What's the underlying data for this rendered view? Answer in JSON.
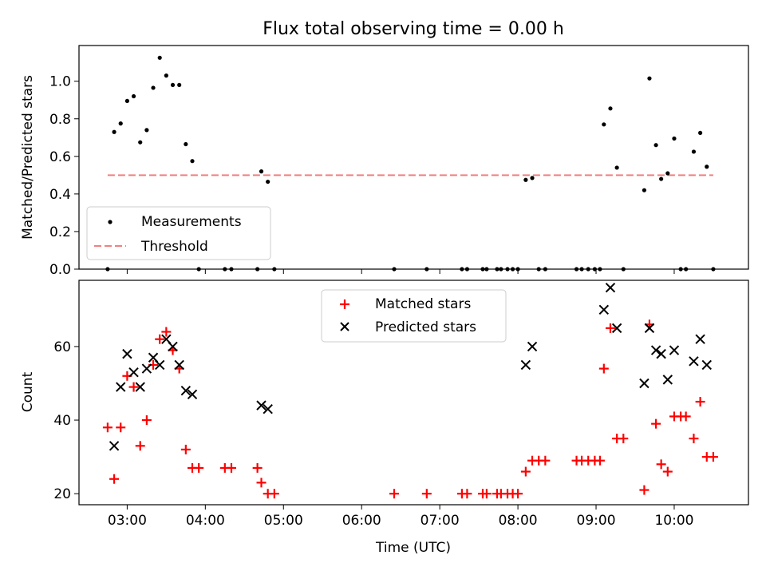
{
  "chart_data": [
    {
      "type": "scatter",
      "title": "Flux total observing time = 0.00 h",
      "xlabel": "",
      "ylabel": "Matched/Predicted stars",
      "xlim": [
        "02:23",
        "10:57"
      ],
      "ylim": [
        0,
        1.19
      ],
      "x_ticks": [
        "03:00",
        "04:00",
        "05:00",
        "06:00",
        "07:00",
        "08:00",
        "09:00",
        "10:00"
      ],
      "x_ticks_labelled": false,
      "y_ticks": [
        0.0,
        0.2,
        0.4,
        0.6,
        0.8,
        1.0
      ],
      "legend_position": "lower-left",
      "legend": {
        "measurements": "Measurements",
        "threshold": "Threshold"
      },
      "threshold": {
        "name": "Threshold",
        "y": 0.5,
        "x_range": [
          "02:45",
          "10:30"
        ],
        "color": "#f08080",
        "style": "dashed"
      },
      "series": [
        {
          "name": "Measurements",
          "color": "#000000",
          "points": [
            [
              "02:45",
              0.0
            ],
            [
              "02:50",
              0.73
            ],
            [
              "02:55",
              0.775
            ],
            [
              "03:00",
              0.895
            ],
            [
              "03:05",
              0.92
            ],
            [
              "03:10",
              0.675
            ],
            [
              "03:15",
              0.74
            ],
            [
              "03:20",
              0.965
            ],
            [
              "03:25",
              1.125
            ],
            [
              "03:30",
              1.03
            ],
            [
              "03:35",
              0.98
            ],
            [
              "03:40",
              0.98
            ],
            [
              "03:45",
              0.665
            ],
            [
              "03:50",
              0.575
            ],
            [
              "03:55",
              0.0
            ],
            [
              "04:15",
              0.0
            ],
            [
              "04:20",
              0.0
            ],
            [
              "04:40",
              0.0
            ],
            [
              "04:43",
              0.52
            ],
            [
              "04:48",
              0.465
            ],
            [
              "04:53",
              0.0
            ],
            [
              "06:25",
              0.0
            ],
            [
              "06:50",
              0.0
            ],
            [
              "07:17",
              0.0
            ],
            [
              "07:21",
              0.0
            ],
            [
              "07:33",
              0.0
            ],
            [
              "07:36",
              0.0
            ],
            [
              "07:44",
              0.0
            ],
            [
              "07:47",
              0.0
            ],
            [
              "07:52",
              0.0
            ],
            [
              "07:56",
              0.0
            ],
            [
              "08:00",
              0.0
            ],
            [
              "08:06",
              0.475
            ],
            [
              "08:11",
              0.485
            ],
            [
              "08:16",
              0.0
            ],
            [
              "08:21",
              0.0
            ],
            [
              "08:45",
              0.0
            ],
            [
              "08:49",
              0.0
            ],
            [
              "08:54",
              0.0
            ],
            [
              "08:59",
              0.0
            ],
            [
              "09:03",
              0.0
            ],
            [
              "09:06",
              0.77
            ],
            [
              "09:11",
              0.855
            ],
            [
              "09:16",
              0.54
            ],
            [
              "09:21",
              0.0
            ],
            [
              "09:37",
              0.42
            ],
            [
              "09:41",
              1.015
            ],
            [
              "09:46",
              0.66
            ],
            [
              "09:50",
              0.48
            ],
            [
              "09:55",
              0.51
            ],
            [
              "10:00",
              0.695
            ],
            [
              "10:05",
              0.0
            ],
            [
              "10:09",
              0.0
            ],
            [
              "10:15",
              0.625
            ],
            [
              "10:20",
              0.725
            ],
            [
              "10:25",
              0.545
            ],
            [
              "10:30",
              0.0
            ]
          ]
        }
      ]
    },
    {
      "type": "scatter",
      "title": "",
      "xlabel": "Time (UTC)",
      "ylabel": "Count",
      "xlim": [
        "02:23",
        "10:57"
      ],
      "ylim": [
        17,
        78
      ],
      "x_ticks": [
        "03:00",
        "04:00",
        "05:00",
        "06:00",
        "07:00",
        "08:00",
        "09:00",
        "10:00"
      ],
      "y_ticks": [
        20,
        40,
        60
      ],
      "legend_position": "upper-center",
      "series": [
        {
          "name": "Matched stars",
          "marker": "plus",
          "color": "#ff0000",
          "points": [
            [
              "02:45",
              38
            ],
            [
              "02:50",
              24
            ],
            [
              "02:55",
              38
            ],
            [
              "03:00",
              52
            ],
            [
              "03:05",
              49
            ],
            [
              "03:10",
              33
            ],
            [
              "03:15",
              40
            ],
            [
              "03:20",
              55
            ],
            [
              "03:25",
              62
            ],
            [
              "03:30",
              64
            ],
            [
              "03:35",
              59
            ],
            [
              "03:40",
              54
            ],
            [
              "03:45",
              32
            ],
            [
              "03:50",
              27
            ],
            [
              "03:55",
              27
            ],
            [
              "04:15",
              27
            ],
            [
              "04:20",
              27
            ],
            [
              "04:40",
              27
            ],
            [
              "04:43",
              23
            ],
            [
              "04:48",
              20
            ],
            [
              "04:53",
              20
            ],
            [
              "06:25",
              20
            ],
            [
              "06:50",
              20
            ],
            [
              "07:17",
              20
            ],
            [
              "07:21",
              20
            ],
            [
              "07:33",
              20
            ],
            [
              "07:36",
              20
            ],
            [
              "07:44",
              20
            ],
            [
              "07:47",
              20
            ],
            [
              "07:52",
              20
            ],
            [
              "07:56",
              20
            ],
            [
              "08:00",
              20
            ],
            [
              "08:06",
              26
            ],
            [
              "08:11",
              29
            ],
            [
              "08:16",
              29
            ],
            [
              "08:21",
              29
            ],
            [
              "08:45",
              29
            ],
            [
              "08:49",
              29
            ],
            [
              "08:54",
              29
            ],
            [
              "08:59",
              29
            ],
            [
              "09:03",
              29
            ],
            [
              "09:06",
              54
            ],
            [
              "09:11",
              65
            ],
            [
              "09:16",
              35
            ],
            [
              "09:21",
              35
            ],
            [
              "09:37",
              21
            ],
            [
              "09:41",
              66
            ],
            [
              "09:46",
              39
            ],
            [
              "09:50",
              28
            ],
            [
              "09:55",
              26
            ],
            [
              "10:00",
              41
            ],
            [
              "10:05",
              41
            ],
            [
              "10:09",
              41
            ],
            [
              "10:15",
              35
            ],
            [
              "10:20",
              45
            ],
            [
              "10:25",
              30
            ],
            [
              "10:30",
              30
            ]
          ]
        },
        {
          "name": "Predicted stars",
          "marker": "x",
          "color": "#000000",
          "points": [
            [
              "02:50",
              33
            ],
            [
              "02:55",
              49
            ],
            [
              "03:00",
              58
            ],
            [
              "03:05",
              53
            ],
            [
              "03:10",
              49
            ],
            [
              "03:15",
              54
            ],
            [
              "03:20",
              57
            ],
            [
              "03:25",
              55
            ],
            [
              "03:30",
              62
            ],
            [
              "03:35",
              60
            ],
            [
              "03:40",
              55
            ],
            [
              "03:45",
              48
            ],
            [
              "03:50",
              47
            ],
            [
              "04:43",
              44
            ],
            [
              "04:48",
              43
            ],
            [
              "08:06",
              55
            ],
            [
              "08:11",
              60
            ],
            [
              "09:06",
              70
            ],
            [
              "09:11",
              76
            ],
            [
              "09:16",
              65
            ],
            [
              "09:37",
              50
            ],
            [
              "09:41",
              65
            ],
            [
              "09:46",
              59
            ],
            [
              "09:50",
              58
            ],
            [
              "09:55",
              51
            ],
            [
              "10:00",
              59
            ],
            [
              "10:15",
              56
            ],
            [
              "10:20",
              62
            ],
            [
              "10:25",
              55
            ]
          ]
        }
      ]
    }
  ]
}
